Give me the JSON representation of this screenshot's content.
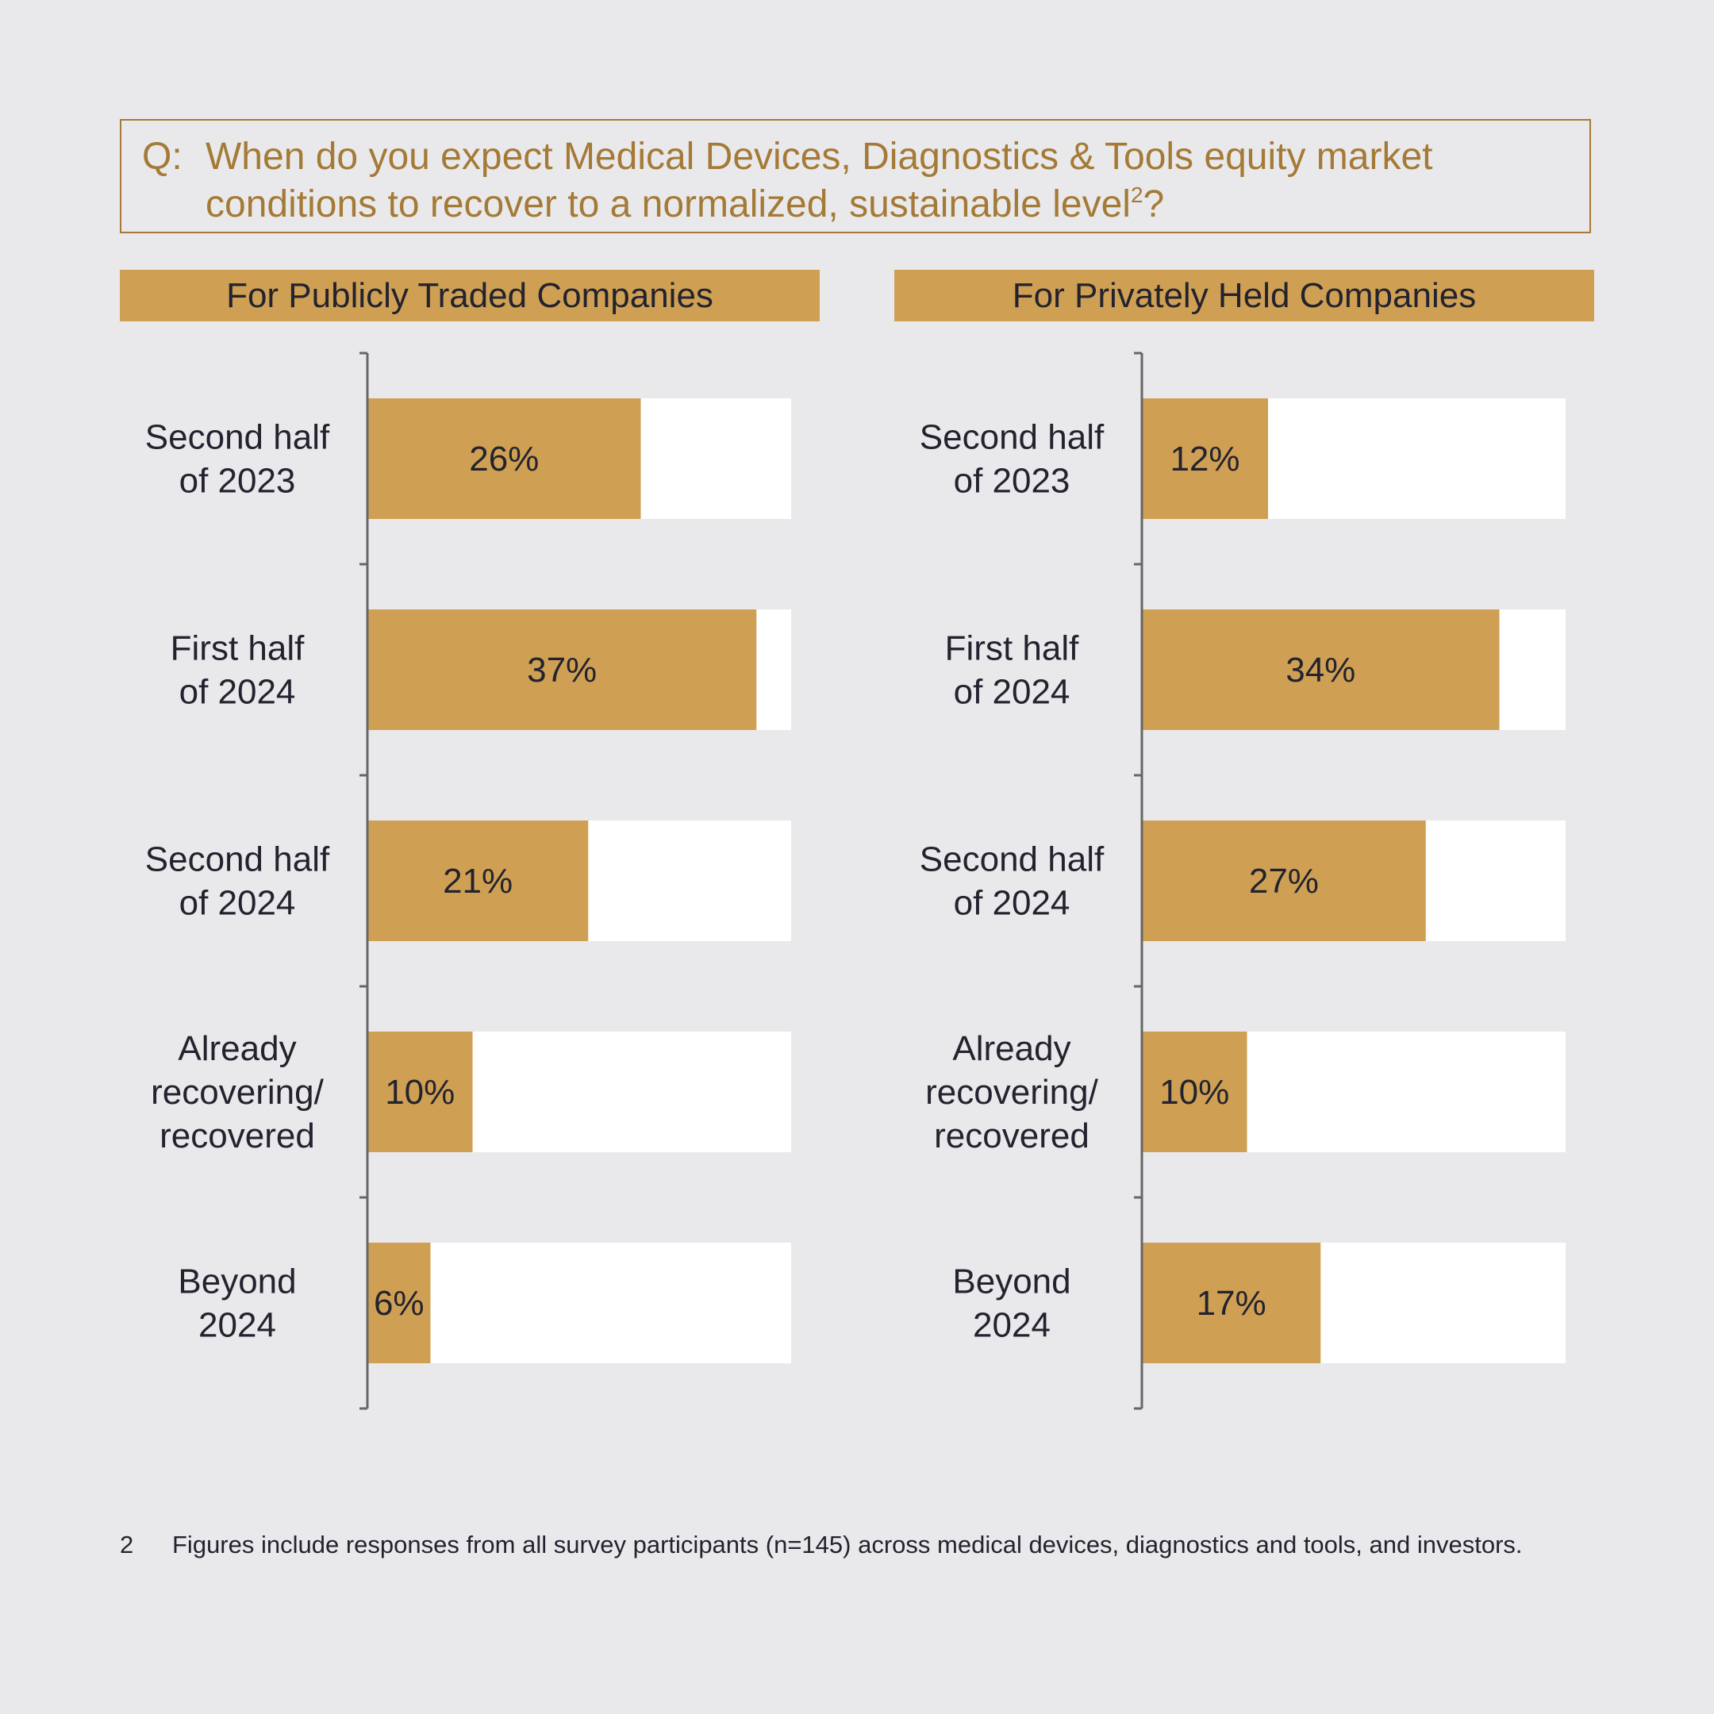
{
  "question": {
    "prefix": "Q:",
    "text": "When do you expect Medical Devices, Diagnostics & Tools equity market conditions to recover to a normalized, sustainable level",
    "superscript": "2",
    "suffix": "?"
  },
  "colors": {
    "bar": "#cfa053",
    "track": "#ffffff",
    "axis": "#666666",
    "accent": "#a47a36",
    "text": "#23232f",
    "background": "#e9e9eb"
  },
  "chart_data": [
    {
      "type": "bar",
      "orientation": "horizontal",
      "title": "For Publicly Traded Companies",
      "categories": [
        [
          "Second half",
          "of 2023"
        ],
        [
          "First half",
          "of 2024"
        ],
        [
          "Second half",
          "of 2024"
        ],
        [
          "Already",
          "recovering/",
          "recovered"
        ],
        [
          "Beyond",
          "2024"
        ]
      ],
      "values": [
        26,
        37,
        21,
        10,
        6
      ],
      "labels": [
        "26%",
        "37%",
        "21%",
        "10%",
        "6%"
      ],
      "unit": "%",
      "xlim": [
        0,
        40.3
      ],
      "grid": false
    },
    {
      "type": "bar",
      "orientation": "horizontal",
      "title": "For Privately Held Companies",
      "categories": [
        [
          "Second half",
          "of 2023"
        ],
        [
          "First half",
          "of 2024"
        ],
        [
          "Second half",
          "of 2024"
        ],
        [
          "Already",
          "recovering/",
          "recovered"
        ],
        [
          "Beyond",
          "2024"
        ]
      ],
      "values": [
        12,
        34,
        27,
        10,
        17
      ],
      "labels": [
        "12%",
        "34%",
        "27%",
        "10%",
        "17%"
      ],
      "unit": "%",
      "xlim": [
        0,
        40.3
      ],
      "grid": false
    }
  ],
  "footnote": {
    "number": "2",
    "text": "Figures include responses from all survey participants (n=145) across medical devices, diagnostics and tools, and investors."
  }
}
